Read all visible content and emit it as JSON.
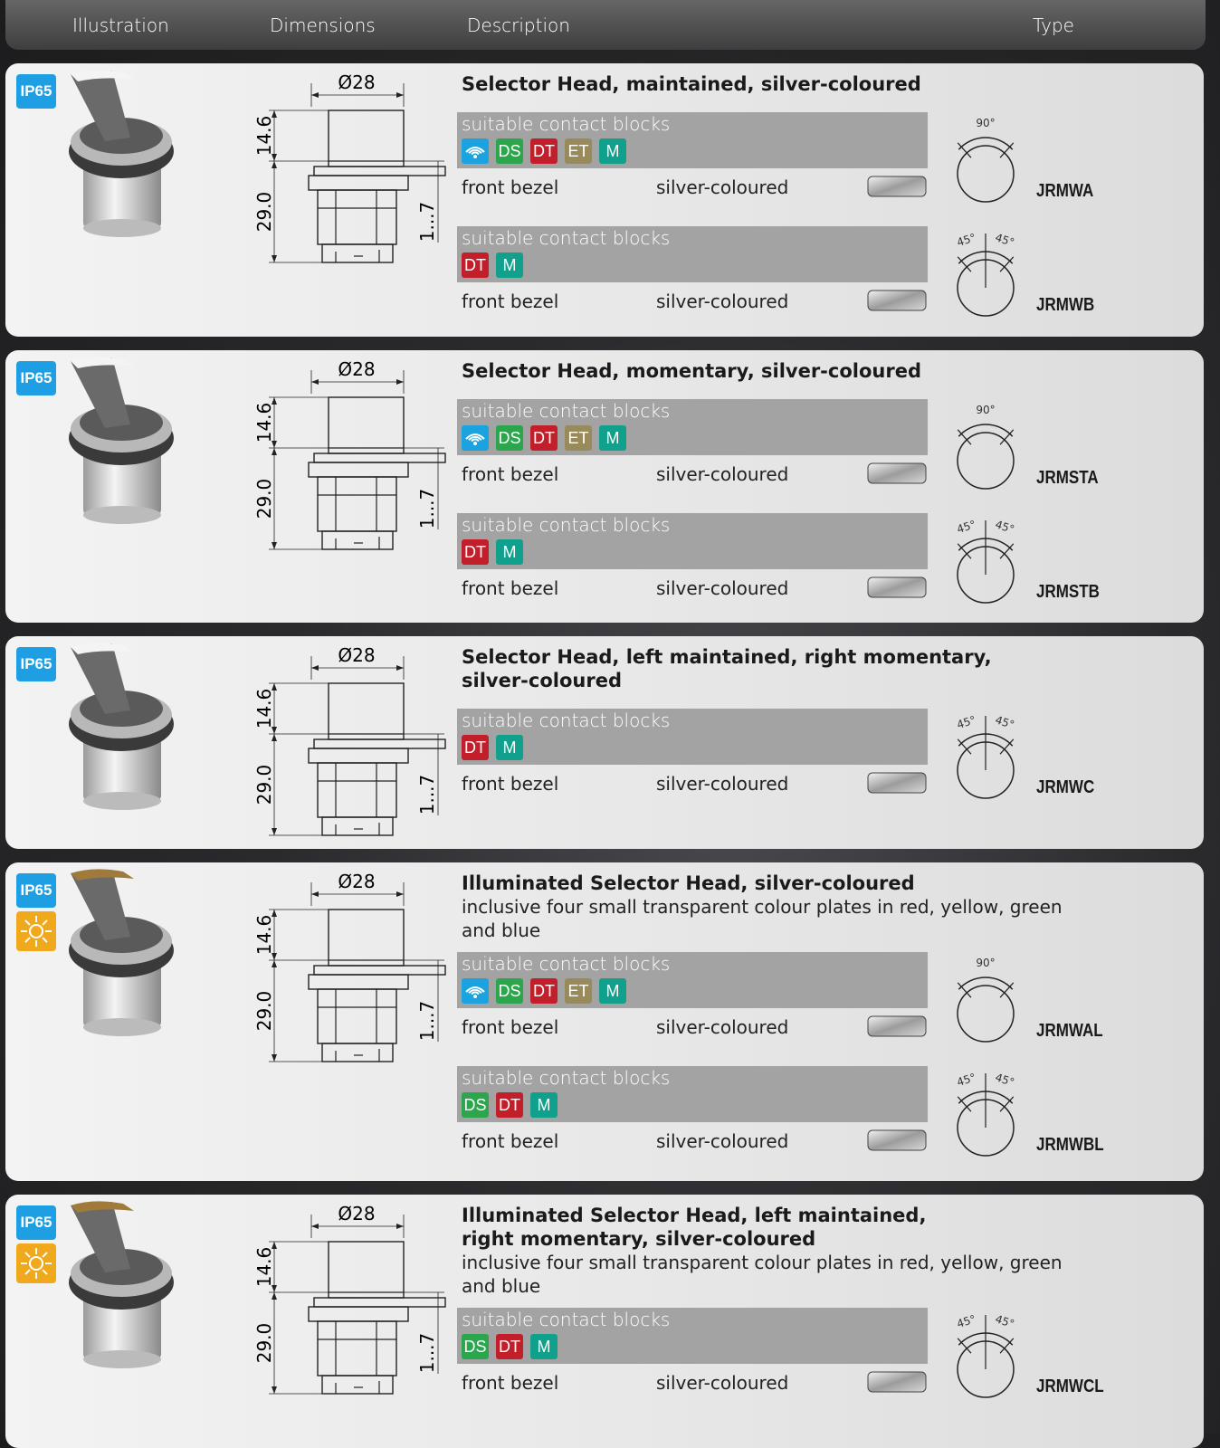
{
  "header": {
    "columns": [
      "Illustration",
      "Dimensions",
      "Description",
      "Type"
    ]
  },
  "products": [
    {
      "badge": "IP65",
      "illuminated": false,
      "dimensions": {
        "diameter": "Ø28",
        "head_height": "14.6",
        "body_height": "29.0",
        "panel_thickness": "1...7"
      },
      "title": [
        "Selector Head, maintained, silver-coloured"
      ],
      "note": [],
      "variants": [
        {
          "label": "suitable contact blocks",
          "wireless": true,
          "blocks": [
            "DS",
            "DT",
            "ET",
            "M"
          ],
          "bezel_label": "front bezel",
          "bezel_colour": "silver-coloured",
          "angles": [
            "90°"
          ],
          "type": "JRMWA"
        },
        {
          "label": "suitable contact blocks",
          "wireless": false,
          "blocks": [
            "DT",
            "M"
          ],
          "bezel_label": "front bezel",
          "bezel_colour": "silver-coloured",
          "angles": [
            "45°",
            "45°"
          ],
          "type": "JRMWB"
        }
      ]
    },
    {
      "badge": "IP65",
      "illuminated": false,
      "dimensions": {
        "diameter": "Ø28",
        "head_height": "14.6",
        "body_height": "29.0",
        "panel_thickness": "1...7"
      },
      "title": [
        "Selector Head, momentary, silver-coloured"
      ],
      "note": [],
      "variants": [
        {
          "label": "suitable contact blocks",
          "wireless": true,
          "blocks": [
            "DS",
            "DT",
            "ET",
            "M"
          ],
          "bezel_label": "front bezel",
          "bezel_colour": "silver-coloured",
          "angles": [
            "90°"
          ],
          "type": "JRMSTA"
        },
        {
          "label": "suitable contact blocks",
          "wireless": false,
          "blocks": [
            "DT",
            "M"
          ],
          "bezel_label": "front bezel",
          "bezel_colour": "silver-coloured",
          "angles": [
            "45°",
            "45°"
          ],
          "type": "JRMSTB"
        }
      ]
    },
    {
      "badge": "IP65",
      "illuminated": false,
      "dimensions": {
        "diameter": "Ø28",
        "head_height": "14.6",
        "body_height": "29.0",
        "panel_thickness": "1...7"
      },
      "title": [
        "Selector Head, left maintained, right momentary,",
        "silver-coloured"
      ],
      "note": [],
      "variants": [
        {
          "label": "suitable contact blocks",
          "wireless": false,
          "blocks": [
            "DT",
            "M"
          ],
          "bezel_label": "front bezel",
          "bezel_colour": "silver-coloured",
          "angles": [
            "45°",
            "45°"
          ],
          "type": "JRMWC"
        }
      ]
    },
    {
      "badge": "IP65",
      "illuminated": true,
      "dimensions": {
        "diameter": "Ø28",
        "head_height": "14.6",
        "body_height": "29.0",
        "panel_thickness": "1...7"
      },
      "title": [
        "Illuminated Selector Head, silver-coloured"
      ],
      "note": [
        "inclusive four small transparent colour plates in red, yellow, green",
        "and blue"
      ],
      "variants": [
        {
          "label": "suitable contact blocks",
          "wireless": true,
          "blocks": [
            "DS",
            "DT",
            "ET",
            "M"
          ],
          "bezel_label": "front bezel",
          "bezel_colour": "silver-coloured",
          "angles": [
            "90°"
          ],
          "type": "JRMWAL"
        },
        {
          "label": "suitable contact blocks",
          "wireless": false,
          "blocks": [
            "DS",
            "DT",
            "M"
          ],
          "bezel_label": "front bezel",
          "bezel_colour": "silver-coloured",
          "angles": [
            "45°",
            "45°"
          ],
          "type": "JRMWBL"
        }
      ]
    },
    {
      "badge": "IP65",
      "illuminated": true,
      "dimensions": {
        "diameter": "Ø28",
        "head_height": "14.6",
        "body_height": "29.0",
        "panel_thickness": "1...7"
      },
      "title": [
        "Illuminated Selector Head, left maintained,",
        "right momentary, silver-coloured"
      ],
      "note": [
        "inclusive four small transparent colour plates in red, yellow, green",
        "and blue"
      ],
      "variants": [
        {
          "label": "suitable contact blocks",
          "wireless": false,
          "blocks": [
            "DS",
            "DT",
            "M"
          ],
          "bezel_label": "front bezel",
          "bezel_colour": "silver-coloured",
          "angles": [
            "45°",
            "45°"
          ],
          "type": "JRMWCL"
        }
      ]
    }
  ]
}
